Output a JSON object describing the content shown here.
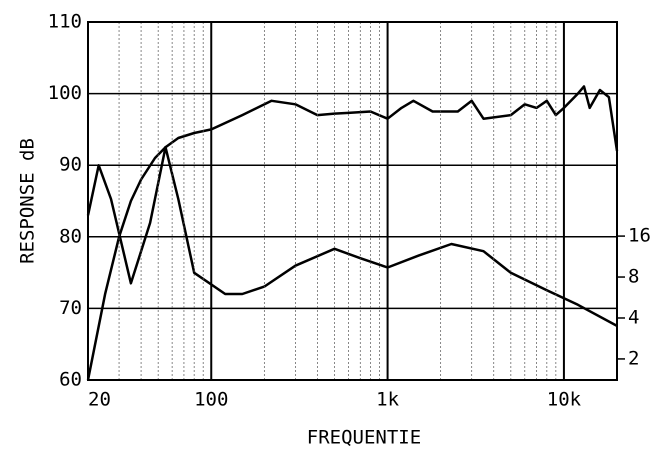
{
  "chart_data": {
    "type": "line",
    "xlabel": "FREQUENTIE",
    "ylabel": "RESPONSE dB",
    "log_x": true,
    "log_y2": true,
    "grid": true,
    "minor_grid": true,
    "xlim": [
      20,
      20000
    ],
    "xticks": [
      {
        "value": 20,
        "label": "20"
      },
      {
        "value": 100,
        "label": "100"
      },
      {
        "value": 1000,
        "label": "1k"
      },
      {
        "value": 10000,
        "label": "10k"
      }
    ],
    "ylim": [
      60,
      110
    ],
    "yticks": [
      60,
      70,
      80,
      90,
      100,
      110
    ],
    "y2lim": [
      1.4,
      600
    ],
    "y2ticks": [
      2,
      4,
      8,
      16
    ],
    "series": [
      {
        "color": "#000000",
        "x": [
          20,
          25,
          30,
          35,
          40,
          48,
          55,
          65,
          80,
          100,
          150,
          220,
          300,
          400,
          500,
          600,
          800,
          1000,
          1200,
          1400,
          1800,
          2500,
          3000,
          3500,
          5000,
          6000,
          7000,
          8000,
          9000,
          10000,
          12000,
          13000,
          14000,
          16000,
          18000,
          20000
        ],
        "values": [
          60,
          72,
          80,
          85,
          88,
          91,
          92.5,
          93.8,
          94.5,
          95,
          97,
          99,
          98.5,
          97,
          97.2,
          97.3,
          97.5,
          96.5,
          98,
          99,
          97.5,
          97.5,
          99,
          96.5,
          97,
          98.5,
          98,
          99,
          97,
          98,
          100,
          101,
          98,
          100.5,
          99.5,
          92
        ]
      },
      {
        "color": "#000000",
        "axis": "y2",
        "x": [
          20,
          23,
          27,
          35,
          45,
          55,
          65,
          80,
          120,
          150,
          200,
          300,
          500,
          700,
          1000,
          1500,
          2300,
          3500,
          5000,
          8000,
          12000,
          20000
        ],
        "values": [
          22.7,
          53,
          30,
          7.2,
          20,
          72,
          30,
          8.6,
          6.0,
          6.0,
          6.8,
          9.7,
          12.9,
          11.0,
          9.4,
          11.5,
          14,
          12.4,
          8.6,
          6.4,
          5.0,
          3.5
        ]
      }
    ]
  }
}
